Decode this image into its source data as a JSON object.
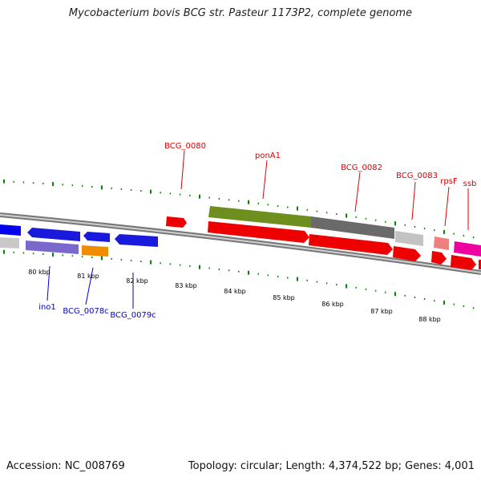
{
  "title": "Mycobacterium bovis BCG str. Pasteur 1173P2, complete genome",
  "footer": {
    "accession": "Accession: NC_008769",
    "stats": "Topology: circular; Length: 4,374,522 bp; Genes: 4,001"
  },
  "colors": {
    "forward_label": "#dd0000",
    "reverse_label": "#0000cc",
    "tick_green": "#008800",
    "backbone": "#888888"
  },
  "scale_labels": [
    "80 kbp",
    "81 kbp",
    "82 kbp",
    "83 kbp",
    "84 kbp",
    "85 kbp",
    "86 kbp",
    "87 kbp",
    "88 kbp"
  ],
  "forward_gene_labels": [
    "BCG_0080",
    "ponA1",
    "BCG_0082",
    "BCG_0083",
    "rpsF",
    "ssb"
  ],
  "reverse_gene_labels": [
    "ino1",
    "BCG_0078c",
    "BCG_0079c"
  ]
}
